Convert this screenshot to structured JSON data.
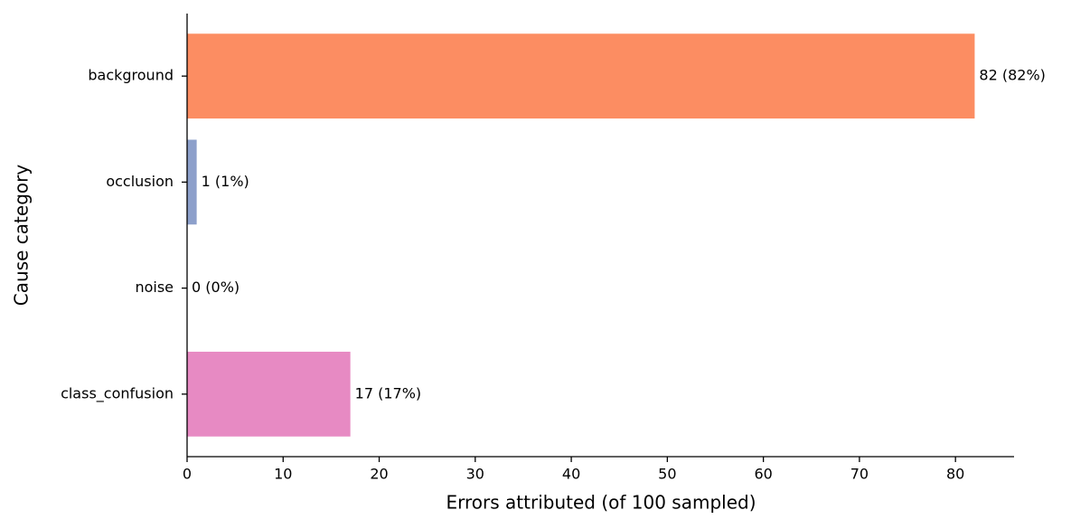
{
  "chart_data": {
    "type": "barh",
    "categories": [
      "background",
      "occlusion",
      "noise",
      "class_confusion"
    ],
    "values": [
      82,
      1,
      0,
      17
    ],
    "value_labels": [
      "82 (82%)",
      "1 (1%)",
      "0 (0%)",
      "17 (17%)"
    ],
    "colors": [
      "#fc8d62",
      "#8da0cb",
      "#66c2a5",
      "#e78ac3"
    ],
    "xlabel": "Errors attributed (of 100 sampled)",
    "ylabel": "Cause category",
    "xlim": [
      0,
      86.1
    ],
    "xticks": [
      0,
      10,
      20,
      30,
      40,
      50,
      60,
      70,
      80
    ],
    "grid": false
  }
}
